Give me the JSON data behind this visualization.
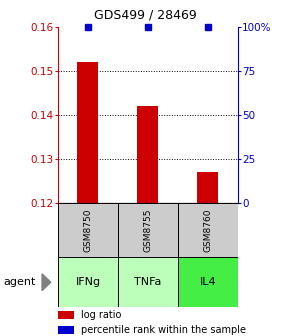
{
  "title": "GDS499 / 28469",
  "samples": [
    "GSM8750",
    "GSM8755",
    "GSM8760"
  ],
  "agents": [
    "IFNg",
    "TNFa",
    "IL4"
  ],
  "log_ratios": [
    0.152,
    0.142,
    0.127
  ],
  "bar_base": 0.12,
  "ylim_left": [
    0.12,
    0.16
  ],
  "ylim_right": [
    0,
    100
  ],
  "yticks_left": [
    0.12,
    0.13,
    0.14,
    0.15,
    0.16
  ],
  "yticks_right": [
    0,
    25,
    50,
    75,
    100
  ],
  "ytick_labels_left": [
    "0.12",
    "0.13",
    "0.14",
    "0.15",
    "0.16"
  ],
  "ytick_labels_right": [
    "0",
    "25",
    "50",
    "75",
    "100%"
  ],
  "bar_color": "#cc0000",
  "percentile_color": "#0000cc",
  "agent_colors": [
    "#bbffbb",
    "#bbffbb",
    "#44ee44"
  ],
  "sample_bg_color": "#cccccc",
  "left_color": "#cc0000",
  "right_color": "#0000cc",
  "bar_width": 0.35,
  "title_fontsize": 9,
  "tick_fontsize": 7.5,
  "sample_fontsize": 6.5,
  "agent_fontsize": 8,
  "legend_fontsize": 7
}
